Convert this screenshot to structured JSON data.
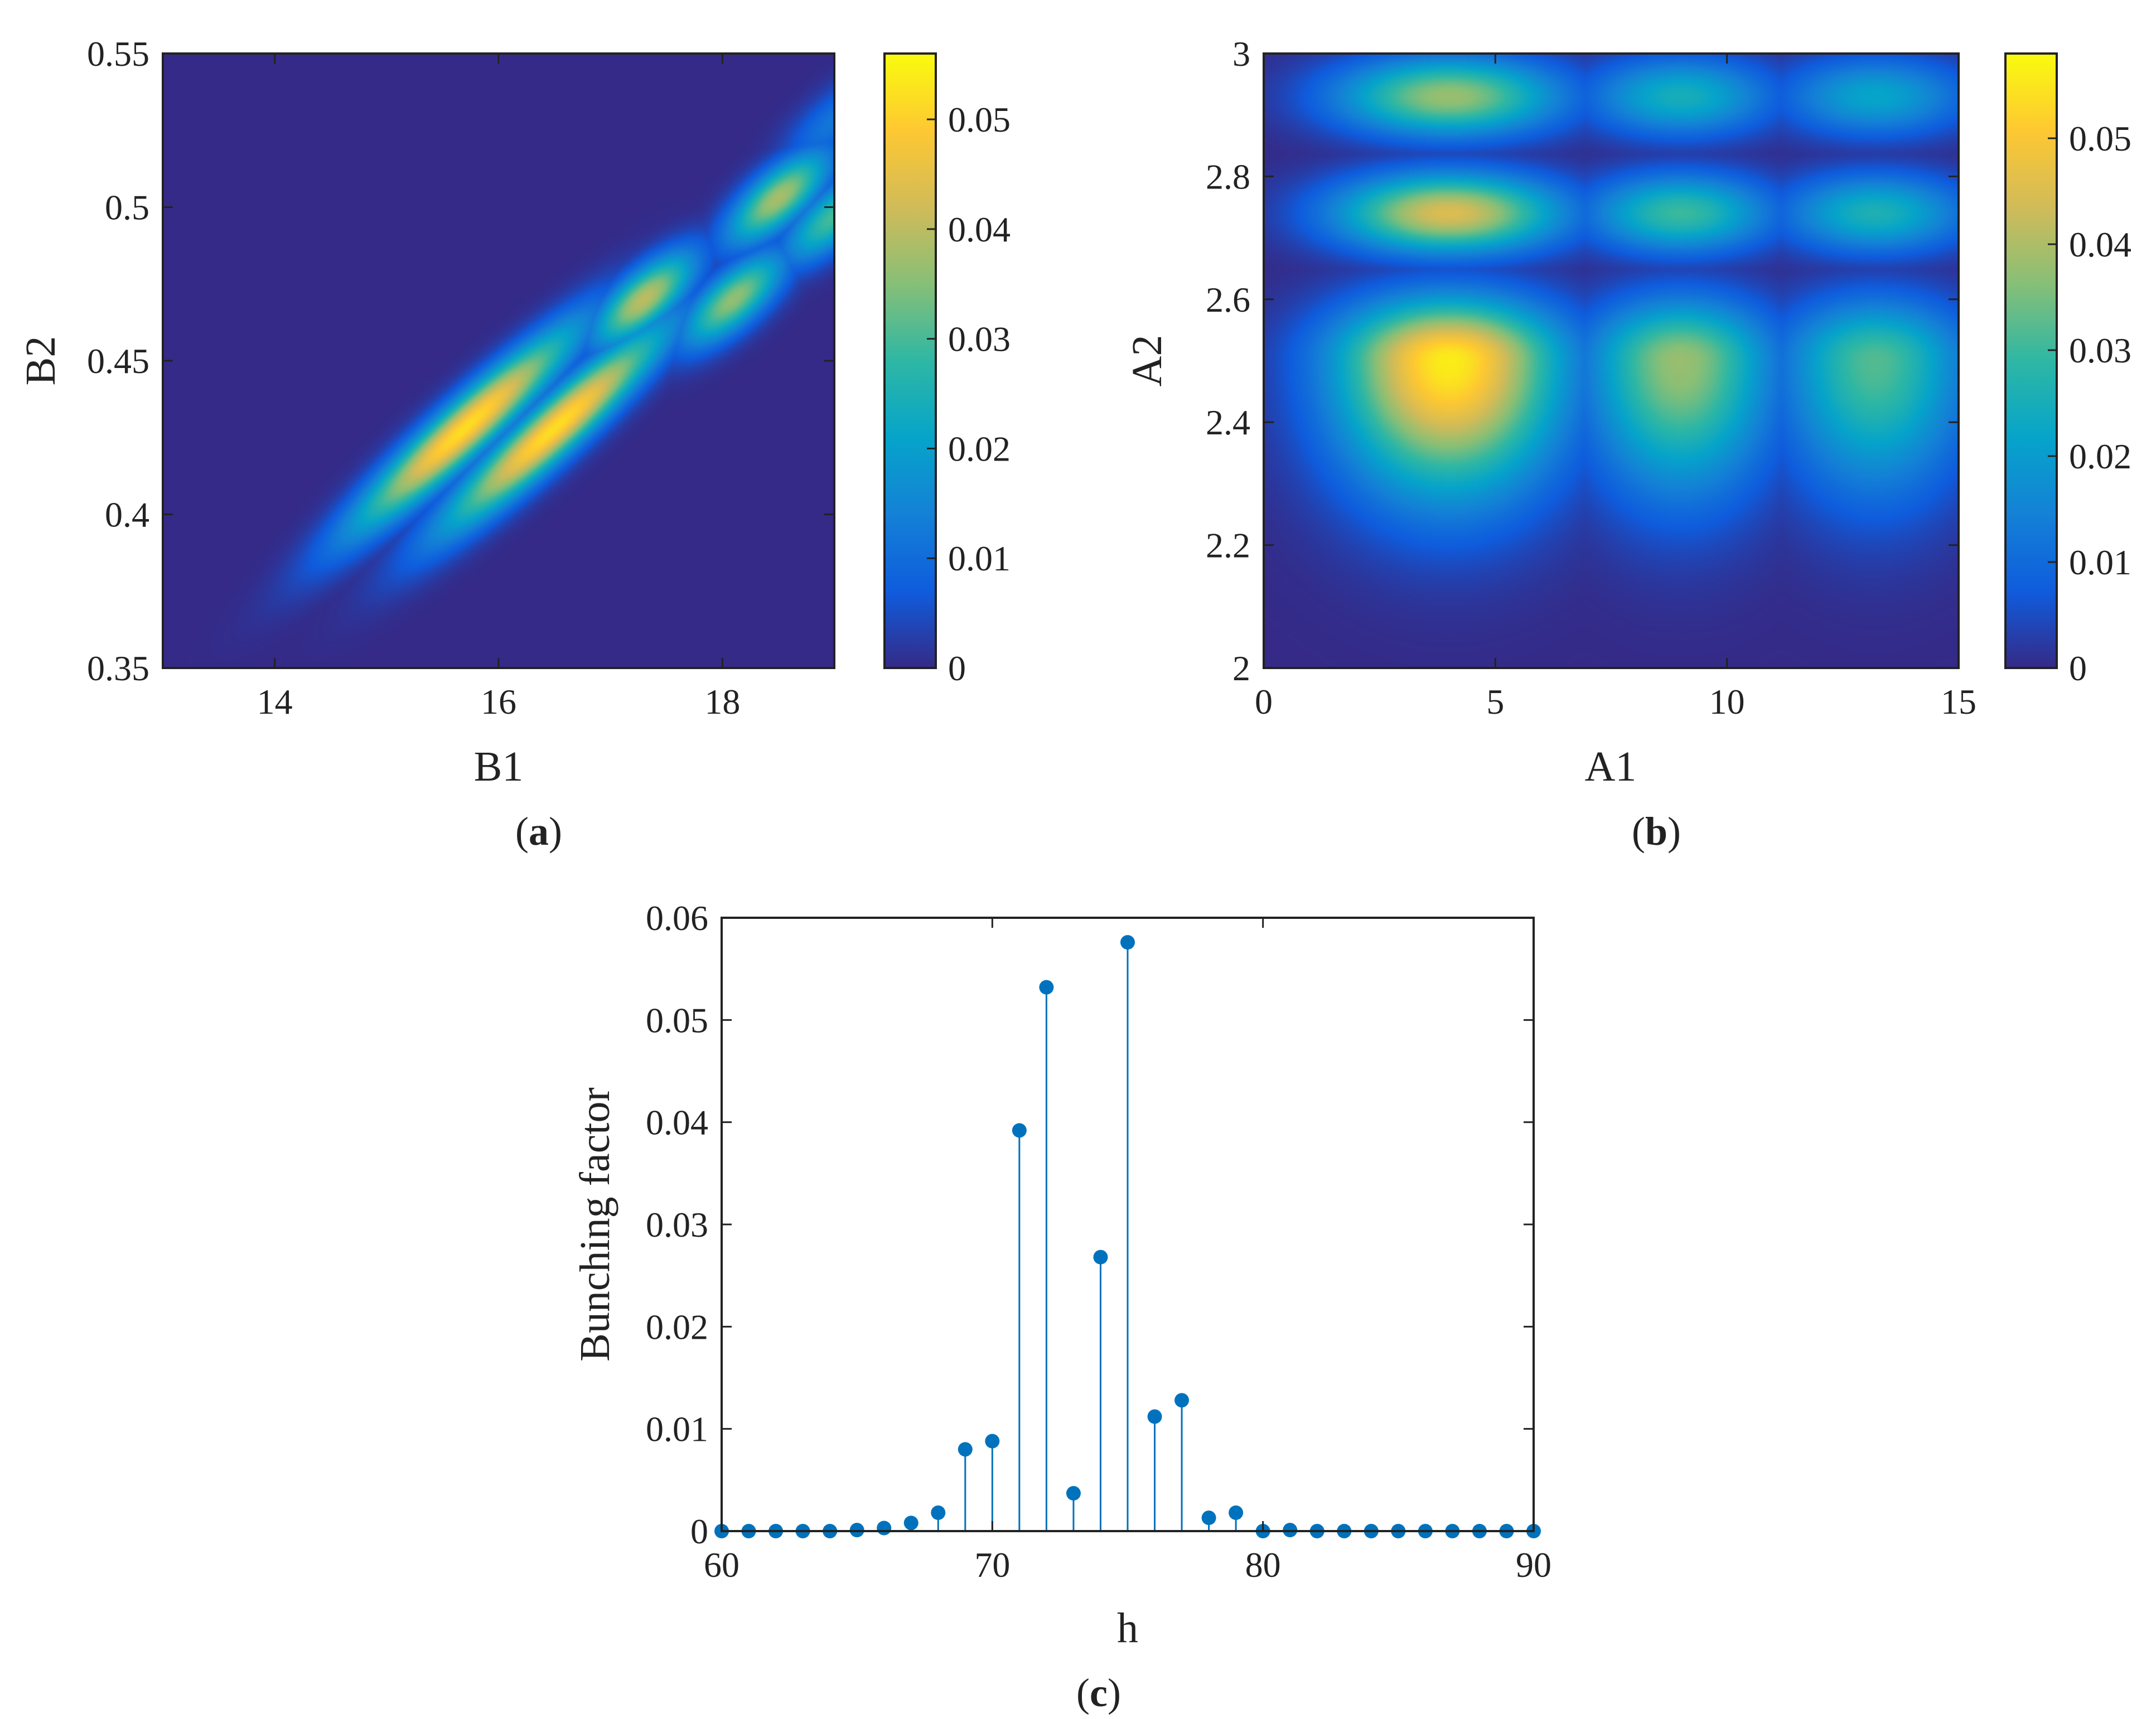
{
  "colors": {
    "parula": [
      "#352a87",
      "#0f5cdd",
      "#1481d6",
      "#06a4ca",
      "#2eb7a4",
      "#87bf77",
      "#d1bb59",
      "#fec832",
      "#f9fb0e"
    ],
    "stem": "#0072bd",
    "axis": "#222222"
  },
  "chart_data": [
    {
      "id": "a",
      "type": "heatmap",
      "caption_letter": "a",
      "xlabel": "B1",
      "ylabel": "B2",
      "xlim": [
        13,
        19
      ],
      "ylim": [
        0.35,
        0.55
      ],
      "xticks": [
        "14",
        "16",
        "18"
      ],
      "yticks": [
        "0.35",
        "0.4",
        "0.45",
        "0.5",
        "0.55"
      ],
      "colorbar": {
        "min": 0,
        "max": 0.056,
        "ticks": [
          "0",
          "0.01",
          "0.02",
          "0.03",
          "0.04",
          "0.05"
        ]
      },
      "peaks": [
        {
          "x": 15.7,
          "y": 0.428,
          "value": 0.052
        },
        {
          "x": 16.5,
          "y": 0.428,
          "value": 0.052
        },
        {
          "x": 17.3,
          "y": 0.47,
          "value": 0.04
        },
        {
          "x": 18.1,
          "y": 0.47,
          "value": 0.036
        },
        {
          "x": 18.5,
          "y": 0.503,
          "value": 0.038
        },
        {
          "x": 19.0,
          "y": 0.497,
          "value": 0.03
        },
        {
          "x": 19.0,
          "y": 0.528,
          "value": 0.012
        }
      ]
    },
    {
      "id": "b",
      "type": "heatmap",
      "caption_letter": "b",
      "xlabel": "A1",
      "ylabel": "A2",
      "xlim": [
        0,
        15
      ],
      "ylim": [
        2,
        3
      ],
      "xticks": [
        "0",
        "5",
        "10",
        "15"
      ],
      "yticks": [
        "2",
        "2.2",
        "2.4",
        "2.6",
        "2.8",
        "3"
      ],
      "colorbar": {
        "min": 0,
        "max": 0.058,
        "ticks": [
          "0",
          "0.01",
          "0.02",
          "0.03",
          "0.04",
          "0.05"
        ]
      },
      "peaks": [
        {
          "x": 4.0,
          "y": 2.5,
          "value": 0.056
        },
        {
          "x": 9.0,
          "y": 2.5,
          "value": 0.038
        },
        {
          "x": 13.2,
          "y": 2.5,
          "value": 0.032
        },
        {
          "x": 4.0,
          "y": 2.74,
          "value": 0.045
        },
        {
          "x": 9.0,
          "y": 2.74,
          "value": 0.03
        },
        {
          "x": 13.2,
          "y": 2.74,
          "value": 0.026
        },
        {
          "x": 4.0,
          "y": 2.93,
          "value": 0.038
        },
        {
          "x": 9.0,
          "y": 2.93,
          "value": 0.025
        },
        {
          "x": 13.2,
          "y": 2.93,
          "value": 0.022
        }
      ]
    },
    {
      "id": "c",
      "type": "stem",
      "caption_letter": "c",
      "xlabel": "h",
      "ylabel": "Bunching factor",
      "xlim": [
        60,
        90
      ],
      "ylim": [
        0,
        0.06
      ],
      "xticks": [
        "60",
        "70",
        "80",
        "90"
      ],
      "yticks": [
        "0",
        "0.01",
        "0.02",
        "0.03",
        "0.04",
        "0.05",
        "0.06"
      ],
      "x": [
        60,
        61,
        62,
        63,
        64,
        65,
        66,
        67,
        68,
        69,
        70,
        71,
        72,
        73,
        74,
        75,
        76,
        77,
        78,
        79,
        80,
        81,
        82,
        83,
        84,
        85,
        86,
        87,
        88,
        89,
        90
      ],
      "y": [
        0,
        0,
        0,
        0,
        0,
        0.0001,
        0.0003,
        0.0008,
        0.0018,
        0.008,
        0.0088,
        0.0392,
        0.0532,
        0.0037,
        0.0268,
        0.0576,
        0.0112,
        0.0128,
        0.0013,
        0.0018,
        0,
        0.0001,
        0,
        0,
        0,
        0,
        0,
        0,
        0,
        0,
        0
      ]
    }
  ]
}
